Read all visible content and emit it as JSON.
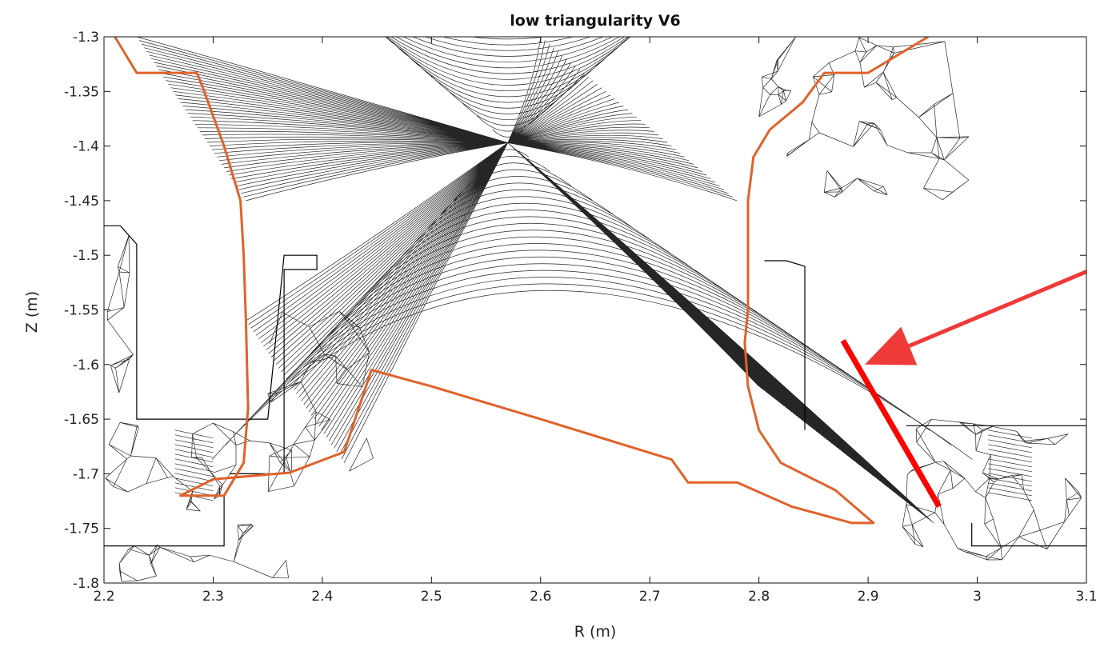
{
  "chart_data": {
    "type": "mesh-plot",
    "title": "low triangularity V6",
    "xlabel": "R (m)",
    "ylabel": "Z (m)",
    "xlim": [
      2.2,
      3.1
    ],
    "ylim": [
      -1.8,
      -1.3
    ],
    "x_ticks": [
      "2.2",
      "2.3",
      "2.4",
      "2.5",
      "2.6",
      "2.7",
      "2.8",
      "2.9",
      "3",
      "3.1"
    ],
    "y_ticks": [
      "-1.3",
      "-1.35",
      "-1.4",
      "-1.45",
      "-1.5",
      "-1.55",
      "-1.6",
      "-1.65",
      "-1.7",
      "-1.75",
      "-1.8"
    ],
    "x_point": [
      2.57,
      -1.397
    ],
    "wall_outline": {
      "color": "#e0622a",
      "points": [
        [
          2.21,
          -1.3
        ],
        [
          2.23,
          -1.333
        ],
        [
          2.285,
          -1.333
        ],
        [
          2.29,
          -1.345
        ],
        [
          2.31,
          -1.4
        ],
        [
          2.325,
          -1.45
        ],
        [
          2.328,
          -1.5
        ],
        [
          2.33,
          -1.56
        ],
        [
          2.332,
          -1.64
        ],
        [
          2.328,
          -1.69
        ],
        [
          2.31,
          -1.72
        ],
        [
          2.27,
          -1.72
        ],
        [
          2.3,
          -1.705
        ],
        [
          2.37,
          -1.699
        ],
        [
          2.42,
          -1.68
        ],
        [
          2.445,
          -1.605
        ],
        [
          2.5,
          -1.62
        ],
        [
          2.6,
          -1.65
        ],
        [
          2.72,
          -1.687
        ],
        [
          2.735,
          -1.708
        ],
        [
          2.78,
          -1.708
        ],
        [
          2.83,
          -1.73
        ],
        [
          2.885,
          -1.745
        ],
        [
          2.905,
          -1.745
        ],
        [
          2.87,
          -1.715
        ],
        [
          2.82,
          -1.69
        ],
        [
          2.8,
          -1.66
        ],
        [
          2.79,
          -1.62
        ],
        [
          2.787,
          -1.58
        ],
        [
          2.79,
          -1.55
        ],
        [
          2.79,
          -1.45
        ],
        [
          2.795,
          -1.41
        ],
        [
          2.81,
          -1.385
        ],
        [
          2.84,
          -1.36
        ],
        [
          2.86,
          -1.333
        ],
        [
          2.9,
          -1.333
        ],
        [
          2.955,
          -1.3
        ]
      ]
    },
    "highlight_segment": {
      "color": "#ff0000",
      "points": [
        [
          2.877,
          -1.578
        ],
        [
          2.965,
          -1.73
        ]
      ]
    },
    "arrow": {
      "color": "#f03a3a",
      "tail": [
        3.1,
        -1.515
      ],
      "head": [
        2.897,
        -1.6
      ]
    },
    "structures": [
      [
        [
          2.2,
          -1.473
        ],
        [
          2.215,
          -1.473
        ],
        [
          2.23,
          -1.49
        ],
        [
          2.23,
          -1.65
        ],
        [
          2.35,
          -1.65
        ],
        [
          2.365,
          -1.5
        ],
        [
          2.395,
          -1.5
        ],
        [
          2.395,
          -1.513
        ],
        [
          2.365,
          -1.513
        ],
        [
          2.365,
          -1.7
        ],
        [
          2.315,
          -1.7
        ]
      ],
      [
        [
          2.805,
          -1.505
        ],
        [
          2.825,
          -1.505
        ],
        [
          2.842,
          -1.51
        ],
        [
          2.842,
          -1.66
        ]
      ],
      [
        [
          2.935,
          -1.656
        ],
        [
          3.1,
          -1.656
        ],
        [
          3.1,
          -1.766
        ],
        [
          2.995,
          -1.766
        ],
        [
          2.995,
          -1.745
        ]
      ],
      [
        [
          2.2,
          -1.766
        ],
        [
          2.275,
          -1.766
        ],
        [
          2.31,
          -1.766
        ],
        [
          2.31,
          -1.72
        ]
      ]
    ]
  }
}
